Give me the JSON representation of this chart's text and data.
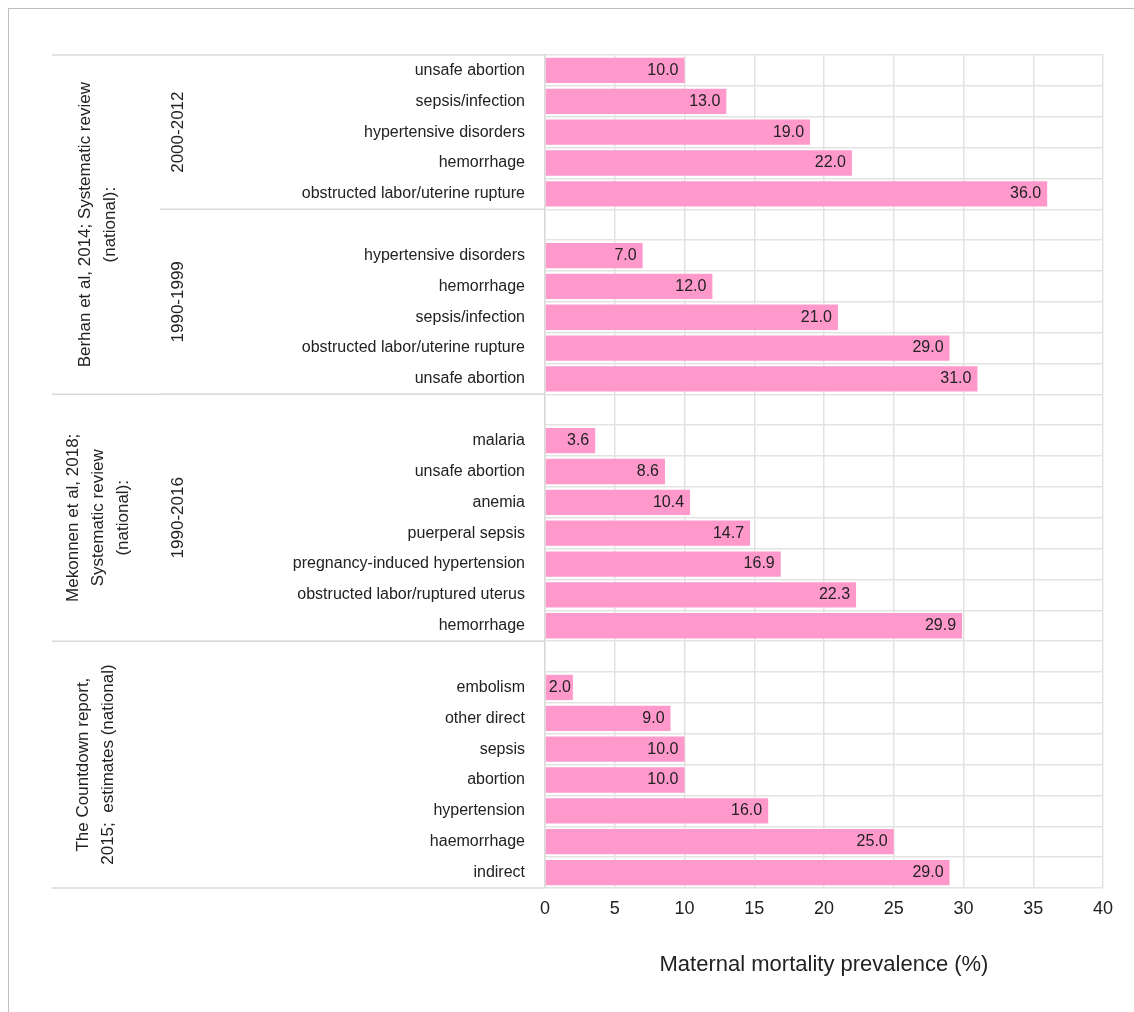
{
  "chart_data": {
    "type": "bar",
    "orientation": "horizontal",
    "xlabel": "Maternal mortality prevalence (%)",
    "categories": [
      "unsafe abortion",
      "sepsis/infection",
      "hypertensive disorders",
      "hemorrhage",
      "obstructed labor/uterine rupture",
      null,
      "hypertensive disorders",
      "hemorrhage",
      "sepsis/infection",
      "obstructed labor/uterine rupture",
      "unsafe abortion",
      null,
      "malaria",
      "unsafe abortion",
      "anemia",
      "puerperal sepsis",
      "pregnancy-induced hypertension",
      "obstructed labor/ruptured uterus",
      "hemorrhage",
      null,
      "embolism",
      "other direct",
      "sepsis",
      "abortion",
      "hypertension",
      "haemorrhage",
      "indirect"
    ],
    "values": [
      10,
      13,
      19,
      22,
      36,
      null,
      7,
      12,
      21,
      29,
      31,
      null,
      3.6,
      8.6,
      10.4,
      14.7,
      16.9,
      22.3,
      29.9,
      null,
      2,
      9,
      10,
      10,
      16,
      25,
      29
    ],
    "value_labels": [
      "10.0",
      "13.0",
      "19.0",
      "22.0",
      "36.0",
      null,
      "7.0",
      "12.0",
      "21.0",
      "29.0",
      "31.0",
      null,
      "3.6",
      "8.6",
      "10.4",
      "14.7",
      "16.9",
      "22.3",
      "29.9",
      null,
      "2.0",
      "9.0",
      "10.0",
      "10.0",
      "16.0",
      "25.0",
      "29.0"
    ],
    "color": "#ff99cc",
    "xlim": [
      0,
      40
    ],
    "xticks": [
      0,
      5,
      10,
      15,
      20,
      25,
      30,
      35,
      40
    ],
    "grid": true,
    "legend": false,
    "annotations": [
      "Berhan et al, 2014; Systematic review (national):",
      "2000-2012",
      "1990-1999",
      "Mekonnen et al, 2018; Systematic review (national):",
      "1990-2016",
      "The Countdown report, 2015;  estimates (national)"
    ]
  }
}
